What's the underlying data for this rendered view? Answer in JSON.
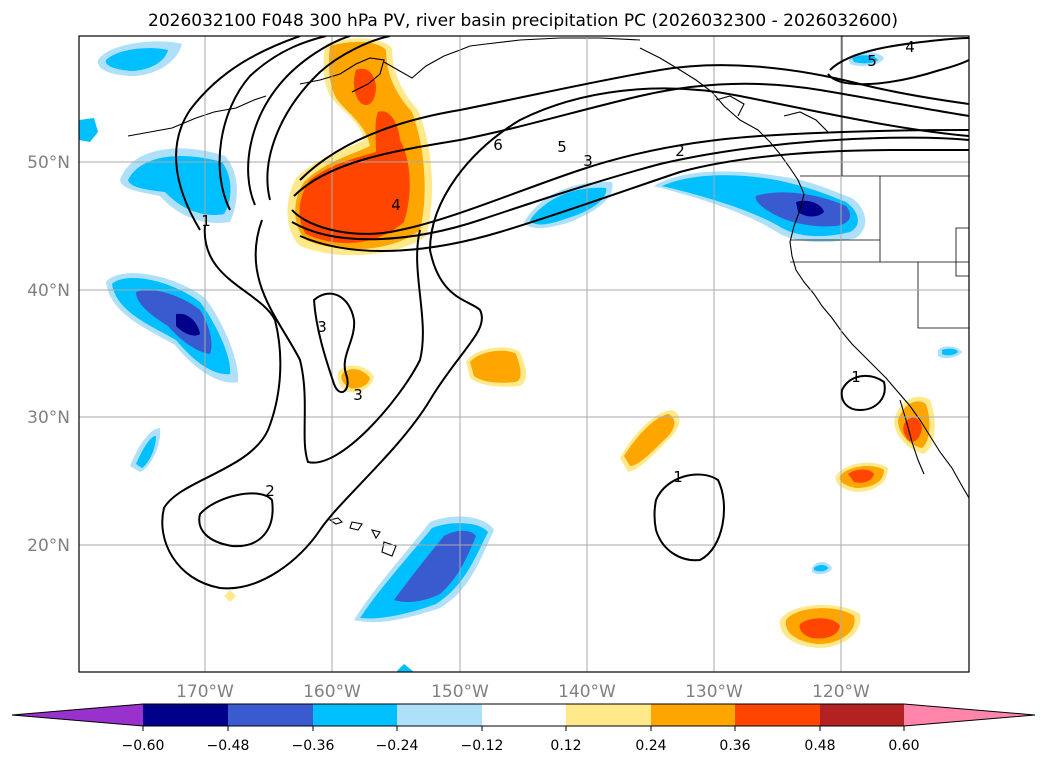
{
  "title": "2026032100 F048 300 hPa PV, river basin precipitation PC (2026032300 - 2026032600)",
  "map": {
    "lat_labels": [
      "50°N",
      "40°N",
      "30°N",
      "20°N"
    ],
    "lon_labels": [
      "170°W",
      "160°W",
      "150°W",
      "140°W",
      "130°W",
      "120°W"
    ]
  },
  "pv_contour_labels": [
    "1",
    "2",
    "3",
    "4",
    "5",
    "6",
    "3",
    "2",
    "1",
    "4",
    "5",
    "1",
    "3"
  ],
  "colorbar": {
    "ticks": [
      "−0.60",
      "−0.48",
      "−0.36",
      "−0.24",
      "−0.12",
      "0.12",
      "0.24",
      "0.36",
      "0.48",
      "0.60"
    ],
    "colors": [
      "#9932cc",
      "#00008b",
      "#3a5bcf",
      "#00bfff",
      "#aee0fa",
      "#ffffff",
      "#ffe98a",
      "#ffa500",
      "#ff4500",
      "#b22222",
      "#ff85aa"
    ]
  },
  "colors": {
    "very_negative": "#00008b",
    "strong_negative": "#3a5bcf",
    "negative": "#00bfff",
    "weak_negative": "#aee0fa",
    "weak_positive": "#ffe98a",
    "positive": "#ffa500",
    "strong_positive": "#ff4500"
  }
}
